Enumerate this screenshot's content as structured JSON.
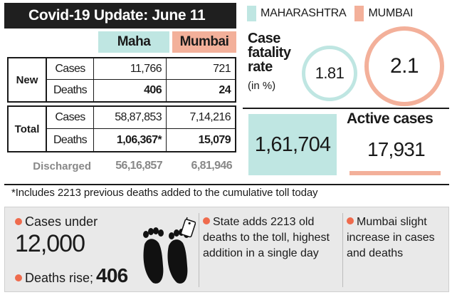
{
  "title": "Covid-19 Update: June 11",
  "table": {
    "headers": {
      "maha": "Maha",
      "mumbai": "Mumbai"
    },
    "new": {
      "label": "New",
      "cases": {
        "label": "Cases",
        "maha": "11,766",
        "mumbai": "721"
      },
      "deaths": {
        "label": "Deaths",
        "maha": "406",
        "mumbai": "24"
      }
    },
    "total": {
      "label": "Total",
      "cases": {
        "label": "Cases",
        "maha": "58,87,853",
        "mumbai": "7,14,216"
      },
      "deaths": {
        "label": "Deaths",
        "maha": "1,06,367*",
        "mumbai": "15,079"
      }
    },
    "discharged": {
      "label": "Discharged",
      "maha": "56,16,857",
      "mumbai": "6,81,946"
    }
  },
  "legend": {
    "maha": "MAHARASHTRA",
    "mumbai": "MUMBAI"
  },
  "fatality": {
    "title_lines": [
      "Case",
      "fatality",
      "rate"
    ],
    "subtitle": "(in %)",
    "maha": "1.81",
    "mumbai": "2.1"
  },
  "active": {
    "title": "Active cases",
    "maha": "1,61,704",
    "mumbai": "17,931"
  },
  "footnote": "*Includes 2213 previous deaths added to the cumulative toll today",
  "bottom": {
    "cases_under_label": "Cases under",
    "cases_under_value": "12,000",
    "deaths_rise_label": "Deaths rise;",
    "deaths_rise_value": "406",
    "state_note": "State adds 2213 old deaths to the toll, highest addition in a single day",
    "mumbai_note": "Mumbai slight increase in cases and deaths"
  },
  "colors": {
    "maha": "#bfe6e2",
    "mumbai": "#f3b09a",
    "bullet": "#ef6b4d",
    "title_bg": "#1f1f1f"
  },
  "icons": [
    "feet-with-toe-tag-icon"
  ]
}
